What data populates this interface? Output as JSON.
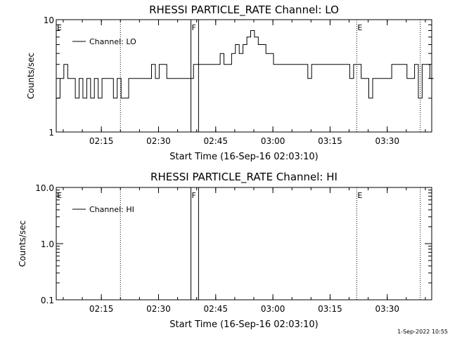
{
  "chart_data": [
    {
      "type": "line",
      "title": "RHESSI PARTICLE_RATE Channel: LO",
      "xlabel": "Start Time (16-Sep-16 02:03:10)",
      "ylabel": "Counts/sec",
      "yscale": "log",
      "ylim": [
        1,
        10
      ],
      "xlim": [
        "02:03:10",
        "03:41:40"
      ],
      "y_tick_labels": [
        "1",
        "10"
      ],
      "x_tick_labels": [
        "02:15",
        "02:30",
        "02:45",
        "03:00",
        "03:15",
        "03:30"
      ],
      "legend": "top-left",
      "series": [
        {
          "name": "Channel: LO",
          "color": "#000000",
          "x": [
            "02:03:10",
            "02:04:10",
            "02:05:10",
            "02:06:10",
            "02:07:10",
            "02:08:10",
            "02:09:10",
            "02:10:10",
            "02:11:10",
            "02:12:10",
            "02:13:10",
            "02:14:10",
            "02:15:10",
            "02:16:10",
            "02:17:10",
            "02:18:10",
            "02:19:10",
            "02:20:10",
            "02:21:10",
            "02:22:10",
            "02:23:10",
            "02:24:10",
            "02:25:10",
            "02:26:10",
            "02:27:10",
            "02:28:10",
            "02:29:10",
            "02:30:10",
            "02:31:10",
            "02:32:10",
            "02:33:10",
            "02:34:10",
            "02:35:10",
            "02:36:10",
            "02:37:10",
            "02:38:10",
            "02:39:10",
            "02:40:10",
            "02:41:10",
            "02:42:10",
            "02:43:10",
            "02:44:10",
            "02:45:10",
            "02:46:10",
            "02:47:10",
            "02:48:10",
            "02:49:10",
            "02:50:10",
            "02:51:10",
            "02:52:10",
            "02:53:10",
            "02:54:10",
            "02:55:10",
            "02:56:10",
            "02:57:10",
            "02:58:10",
            "02:59:10",
            "03:00:10",
            "03:01:10",
            "03:02:10",
            "03:03:10",
            "03:04:10",
            "03:05:10",
            "03:06:10",
            "03:07:10",
            "03:08:10",
            "03:09:10",
            "03:10:10",
            "03:11:10",
            "03:12:10",
            "03:13:10",
            "03:14:10",
            "03:15:10",
            "03:16:10",
            "03:17:10",
            "03:18:10",
            "03:19:10",
            "03:20:10",
            "03:21:10",
            "03:22:10",
            "03:23:10",
            "03:24:10",
            "03:25:10",
            "03:26:10",
            "03:27:10",
            "03:28:10",
            "03:29:10",
            "03:30:10",
            "03:31:10",
            "03:32:10",
            "03:33:10",
            "03:34:10",
            "03:35:10",
            "03:36:10",
            "03:37:10",
            "03:38:10",
            "03:39:10",
            "03:40:10",
            "03:41:10"
          ],
          "values": [
            2,
            3,
            4,
            3,
            3,
            2,
            3,
            2,
            3,
            2,
            3,
            2,
            3,
            3,
            3,
            2,
            3,
            2,
            2,
            3,
            3,
            3,
            3,
            3,
            3,
            4,
            3,
            4,
            4,
            3,
            3,
            3,
            3,
            3,
            3,
            3,
            4,
            4,
            4,
            4,
            4,
            4,
            4,
            5,
            4,
            4,
            5,
            6,
            5,
            6,
            7,
            8,
            7,
            6,
            6,
            5,
            5,
            4,
            4,
            4,
            4,
            4,
            4,
            4,
            4,
            4,
            3,
            4,
            4,
            4,
            4,
            4,
            4,
            4,
            4,
            4,
            4,
            3,
            4,
            4,
            3,
            3,
            2,
            3,
            3,
            3,
            3,
            3,
            4,
            4,
            4,
            4,
            3,
            3,
            4,
            2,
            4,
            4,
            3
          ],
          "y_range": [
            2,
            8
          ]
        }
      ],
      "annotations": [
        {
          "label": "E",
          "x": "02:03:10",
          "style": "dotted"
        },
        {
          "label": "",
          "x": "02:20:00",
          "style": "dotted"
        },
        {
          "label": "F",
          "x": "02:38:30",
          "style": "solid"
        },
        {
          "label": "",
          "x": "02:40:30",
          "style": "solid"
        },
        {
          "label": "E",
          "x": "03:22:00",
          "style": "dotted"
        },
        {
          "label": "",
          "x": "03:38:40",
          "style": "dotted"
        }
      ]
    },
    {
      "type": "line",
      "title": "RHESSI PARTICLE_RATE Channel: HI",
      "xlabel": "Start Time (16-Sep-16 02:03:10)",
      "ylabel": "Counts/sec",
      "yscale": "log",
      "ylim": [
        0.1,
        10
      ],
      "xlim": [
        "02:03:10",
        "03:41:40"
      ],
      "y_tick_labels": [
        "0.1",
        "1.0",
        "10.0"
      ],
      "x_tick_labels": [
        "02:15",
        "02:30",
        "02:45",
        "03:00",
        "03:15",
        "03:30"
      ],
      "legend": "top-left",
      "series": [
        {
          "name": "Channel: HI",
          "color": "#000000",
          "x": [],
          "values": []
        }
      ],
      "annotations": [
        {
          "label": "E",
          "x": "02:03:10",
          "style": "dotted"
        },
        {
          "label": "",
          "x": "02:20:00",
          "style": "dotted"
        },
        {
          "label": "F",
          "x": "02:38:30",
          "style": "solid"
        },
        {
          "label": "",
          "x": "02:40:30",
          "style": "solid"
        },
        {
          "label": "E",
          "x": "03:22:00",
          "style": "dotted"
        },
        {
          "label": "",
          "x": "03:38:40",
          "style": "dotted"
        }
      ]
    }
  ],
  "footer": {
    "timestamp": "1-Sep-2022 10:55"
  }
}
